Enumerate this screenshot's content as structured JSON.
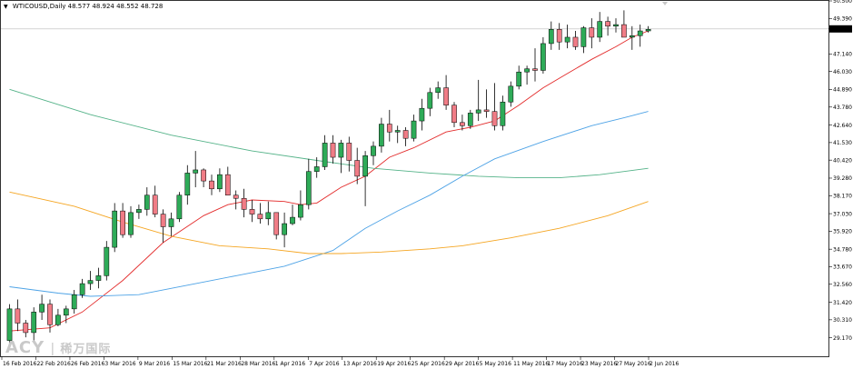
{
  "header": {
    "symbol": "WTICOUSD,Daily",
    "ohlc": "48.577 48.924 48.552 48.728",
    "menu_icon": "triangle-down-icon"
  },
  "watermark": {
    "brand": "ACY",
    "cn": "稀万国际"
  },
  "colors": {
    "bull": "#2eab58",
    "bear": "#f07c86",
    "wick": "#000000",
    "ma_red": "#e32b2b",
    "ma_green": "#55b389",
    "ma_blue": "#4ea3e6",
    "ma_orange": "#f5a623",
    "price_line": "#b9b9b9",
    "price_tag_bg": "#000000",
    "price_tag_text": "#ffffff"
  },
  "chart_data": {
    "type": "candlestick",
    "ylim": [
      28.0,
      50.5
    ],
    "y_ticks": [
      "50.500",
      "49.390",
      "48.728",
      "47.140",
      "46.030",
      "44.890",
      "43.780",
      "42.640",
      "41.530",
      "40.420",
      "39.280",
      "38.170",
      "37.030",
      "35.920",
      "34.780",
      "33.670",
      "32.560",
      "31.420",
      "30.310",
      "29.170"
    ],
    "current_price": "48.728",
    "x_ticks": [
      "16 Feb 2016",
      "22 Feb 2016",
      "26 Feb 2016",
      "3 Mar 2016",
      "9 Mar 2016",
      "15 Mar 2016",
      "21 Mar 2016",
      "28 Mar 2016",
      "1 Apr 2016",
      "7 Apr 2016",
      "13 Apr 2016",
      "19 Apr 2016",
      "25 Apr 2016",
      "29 Apr 2016",
      "5 May 2016",
      "11 May 2016",
      "17 May 2016",
      "23 May 2016",
      "27 May 2016",
      "2 Jun 2016"
    ],
    "candles": [
      [
        29.0,
        31.3,
        28.6,
        31.0
      ],
      [
        31.0,
        31.6,
        29.6,
        30.1
      ],
      [
        30.1,
        30.3,
        29.2,
        29.5
      ],
      [
        29.5,
        31.1,
        29.0,
        30.8
      ],
      [
        30.8,
        31.9,
        30.3,
        31.3
      ],
      [
        31.3,
        31.6,
        29.5,
        30.0
      ],
      [
        30.0,
        31.0,
        29.9,
        30.6
      ],
      [
        30.6,
        31.2,
        30.1,
        31.0
      ],
      [
        31.0,
        32.2,
        30.7,
        31.9
      ],
      [
        31.9,
        32.9,
        31.7,
        32.6
      ],
      [
        32.6,
        33.4,
        32.2,
        32.8
      ],
      [
        32.8,
        33.6,
        32.3,
        33.1
      ],
      [
        33.1,
        35.3,
        32.8,
        34.9
      ],
      [
        34.9,
        37.7,
        34.6,
        37.2
      ],
      [
        37.2,
        37.7,
        35.5,
        35.7
      ],
      [
        35.7,
        37.5,
        35.5,
        37.1
      ],
      [
        37.1,
        37.6,
        36.7,
        37.3
      ],
      [
        37.3,
        38.7,
        36.9,
        38.2
      ],
      [
        38.2,
        38.8,
        36.8,
        37.0
      ],
      [
        37.0,
        37.3,
        35.2,
        36.2
      ],
      [
        36.2,
        37.1,
        35.6,
        36.7
      ],
      [
        36.7,
        38.4,
        36.5,
        38.2
      ],
      [
        38.2,
        40.1,
        37.6,
        39.6
      ],
      [
        39.6,
        41.0,
        38.7,
        39.8
      ],
      [
        39.8,
        39.9,
        38.7,
        39.1
      ],
      [
        39.1,
        39.5,
        38.2,
        38.6
      ],
      [
        38.6,
        39.9,
        38.4,
        39.5
      ],
      [
        39.5,
        40.0,
        38.2,
        38.2
      ],
      [
        38.2,
        38.5,
        37.3,
        38.0
      ],
      [
        38.0,
        38.6,
        36.8,
        37.3
      ],
      [
        37.3,
        37.9,
        36.5,
        37.0
      ],
      [
        37.0,
        37.7,
        36.4,
        36.7
      ],
      [
        36.7,
        37.8,
        36.3,
        37.1
      ],
      [
        37.1,
        37.1,
        35.4,
        35.7
      ],
      [
        35.7,
        37.1,
        34.9,
        36.4
      ],
      [
        36.4,
        37.6,
        36.3,
        36.8
      ],
      [
        36.8,
        38.5,
        36.6,
        37.6
      ],
      [
        37.6,
        40.5,
        37.3,
        39.7
      ],
      [
        39.7,
        40.6,
        39.3,
        40.0
      ],
      [
        40.0,
        42.0,
        39.8,
        41.5
      ],
      [
        41.5,
        42.0,
        40.2,
        40.6
      ],
      [
        40.6,
        41.7,
        39.6,
        41.5
      ],
      [
        41.5,
        41.9,
        39.7,
        40.4
      ],
      [
        40.4,
        41.2,
        38.9,
        39.4
      ],
      [
        39.4,
        41.0,
        37.5,
        40.7
      ],
      [
        40.7,
        41.6,
        40.1,
        41.3
      ],
      [
        41.3,
        43.1,
        40.9,
        42.7
      ],
      [
        42.7,
        43.6,
        41.6,
        42.2
      ],
      [
        42.2,
        42.6,
        41.5,
        42.3
      ],
      [
        42.3,
        42.5,
        41.3,
        41.8
      ],
      [
        41.8,
        43.3,
        41.6,
        42.9
      ],
      [
        42.9,
        44.3,
        42.3,
        43.7
      ],
      [
        43.7,
        45.0,
        43.2,
        44.7
      ],
      [
        44.7,
        45.4,
        44.3,
        45.0
      ],
      [
        45.0,
        45.8,
        43.6,
        43.9
      ],
      [
        43.9,
        44.1,
        42.5,
        42.8
      ],
      [
        42.8,
        43.3,
        42.3,
        42.6
      ],
      [
        42.6,
        43.6,
        42.4,
        43.4
      ],
      [
        43.4,
        45.5,
        42.9,
        43.6
      ],
      [
        43.6,
        44.9,
        43.1,
        43.5
      ],
      [
        43.5,
        45.3,
        42.3,
        42.6
      ],
      [
        42.6,
        44.5,
        42.3,
        44.1
      ],
      [
        44.1,
        45.4,
        43.8,
        45.1
      ],
      [
        45.1,
        46.4,
        44.9,
        46.0
      ],
      [
        46.0,
        46.4,
        45.2,
        46.2
      ],
      [
        46.2,
        47.5,
        45.4,
        46.1
      ],
      [
        46.1,
        48.2,
        45.9,
        47.8
      ],
      [
        47.8,
        49.2,
        47.4,
        48.7
      ],
      [
        48.7,
        49.1,
        47.4,
        47.9
      ],
      [
        47.9,
        49.0,
        47.5,
        48.2
      ],
      [
        48.2,
        48.6,
        47.4,
        47.6
      ],
      [
        47.6,
        48.9,
        47.2,
        48.8
      ],
      [
        48.8,
        49.4,
        47.5,
        48.2
      ],
      [
        48.2,
        49.8,
        47.9,
        49.2
      ],
      [
        49.2,
        49.5,
        48.3,
        48.9
      ],
      [
        48.9,
        49.4,
        48.5,
        49.0
      ],
      [
        49.0,
        49.9,
        48.3,
        48.2
      ],
      [
        48.2,
        48.9,
        47.4,
        48.3
      ],
      [
        48.3,
        49.0,
        47.6,
        48.6
      ],
      [
        48.6,
        48.9,
        48.5,
        48.7
      ]
    ],
    "series": [
      {
        "key": "ma_red",
        "points": [
          [
            0,
            29.6
          ],
          [
            5,
            29.8
          ],
          [
            9,
            30.8
          ],
          [
            14,
            32.8
          ],
          [
            19,
            35.2
          ],
          [
            24,
            36.9
          ],
          [
            27,
            37.6
          ],
          [
            30,
            37.9
          ],
          [
            34,
            37.8
          ],
          [
            36,
            37.6
          ],
          [
            38,
            37.7
          ],
          [
            41,
            38.7
          ],
          [
            44,
            39.4
          ],
          [
            47,
            40.6
          ],
          [
            50,
            41.2
          ],
          [
            54,
            42.2
          ],
          [
            57,
            42.5
          ],
          [
            60,
            42.9
          ],
          [
            63,
            43.9
          ],
          [
            66,
            45.0
          ],
          [
            69,
            45.9
          ],
          [
            72,
            46.8
          ],
          [
            75,
            47.6
          ],
          [
            77,
            48.2
          ],
          [
            79,
            48.6
          ]
        ]
      },
      {
        "key": "ma_green",
        "points": [
          [
            0,
            44.9
          ],
          [
            10,
            43.3
          ],
          [
            20,
            42.0
          ],
          [
            30,
            41.0
          ],
          [
            38,
            40.4
          ],
          [
            45,
            39.9
          ],
          [
            52,
            39.6
          ],
          [
            58,
            39.4
          ],
          [
            63,
            39.3
          ],
          [
            68,
            39.3
          ],
          [
            73,
            39.5
          ],
          [
            79,
            39.9
          ]
        ]
      },
      {
        "key": "ma_blue",
        "points": [
          [
            0,
            32.4
          ],
          [
            6,
            32.0
          ],
          [
            10,
            31.8
          ],
          [
            16,
            31.9
          ],
          [
            22,
            32.5
          ],
          [
            28,
            33.1
          ],
          [
            34,
            33.7
          ],
          [
            40,
            34.7
          ],
          [
            44,
            36.1
          ],
          [
            48,
            37.2
          ],
          [
            52,
            38.2
          ],
          [
            56,
            39.4
          ],
          [
            60,
            40.5
          ],
          [
            66,
            41.6
          ],
          [
            72,
            42.6
          ],
          [
            76,
            43.1
          ],
          [
            79,
            43.5
          ]
        ]
      },
      {
        "key": "ma_orange",
        "points": [
          [
            0,
            38.4
          ],
          [
            8,
            37.5
          ],
          [
            14,
            36.5
          ],
          [
            20,
            35.6
          ],
          [
            26,
            35.0
          ],
          [
            32,
            34.8
          ],
          [
            37,
            34.5
          ],
          [
            41,
            34.5
          ],
          [
            46,
            34.6
          ],
          [
            52,
            34.8
          ],
          [
            56,
            35.0
          ],
          [
            62,
            35.5
          ],
          [
            68,
            36.1
          ],
          [
            74,
            36.9
          ],
          [
            79,
            37.8
          ]
        ]
      }
    ]
  }
}
